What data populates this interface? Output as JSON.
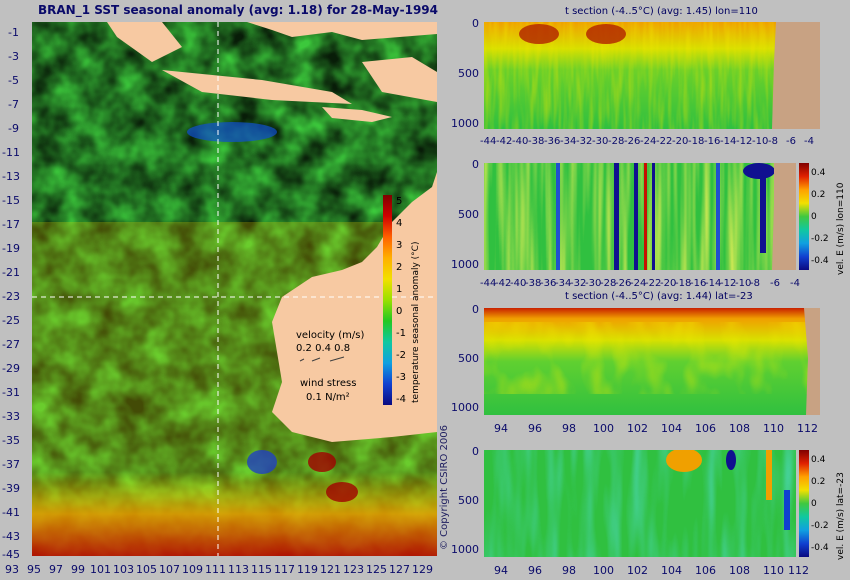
{
  "map": {
    "title": "BRAN_1 SST seasonal anomaly (avg: 1.18) for 28-May-1994",
    "lat_ticks": [
      "-1",
      "-3",
      "-5",
      "-7",
      "-9",
      "-11",
      "-13",
      "-15",
      "-17",
      "-19",
      "-21",
      "-23",
      "-25",
      "-27",
      "-29",
      "-31",
      "-33",
      "-35",
      "-37",
      "-39",
      "-41",
      "-43",
      "-45"
    ],
    "lon_ticks": [
      "93",
      "95",
      "97",
      "99",
      "101",
      "103",
      "105",
      "107",
      "109",
      "111",
      "113",
      "115",
      "117",
      "119",
      "121",
      "123",
      "125",
      "127",
      "129"
    ],
    "colorbar": {
      "label": "temperature seasonal anomaly (°C)",
      "ticks": [
        "5",
        "4",
        "3",
        "2",
        "1",
        "0",
        "-1",
        "-2",
        "-3",
        "-4"
      ]
    },
    "velocity_legend": {
      "title": "velocity (m/s)",
      "values": "0.2 0.4 0.8"
    },
    "wind_legend": {
      "title": "wind stress",
      "value": "0.1 N/m²"
    },
    "copyright": "© Copyright CSIRO 2006",
    "colors": {
      "land": "#f7c9a2",
      "sea_bg": "#39c839"
    }
  },
  "panels": [
    {
      "title": "t section (-4..5°C) (avg: 1.45) lon=110",
      "y_ticks": [
        "0",
        "500",
        "1000"
      ],
      "x_ticks": [
        "-44",
        "-42",
        "-40",
        "-38",
        "-36",
        "-34",
        "-32",
        "-30",
        "-28",
        "-26",
        "-24",
        "-22",
        "-20",
        "-18",
        "-16",
        "-14",
        "-12",
        "-10",
        "-8",
        "-6",
        "-4"
      ],
      "colorbar": null,
      "land_color": "#c8a283"
    },
    {
      "title": "",
      "y_ticks": [
        "0",
        "500",
        "1000"
      ],
      "x_ticks": [
        "-44",
        "-42",
        "-40",
        "-38",
        "-36",
        "-34",
        "-32",
        "-30",
        "-28",
        "-26",
        "-24",
        "-22",
        "-20",
        "-18",
        "-16",
        "-14",
        "-12",
        "-10",
        "-8",
        "-6",
        "-4"
      ],
      "colorbar": {
        "label": "vel. E (m/s) lon=110",
        "ticks": [
          "0.4",
          "0.2",
          "0",
          "-0.2",
          "-0.4"
        ]
      },
      "land_color": "#c8a283"
    },
    {
      "title": "t section (-4..5°C) (avg: 1.44) lat=-23",
      "y_ticks": [
        "0",
        "500",
        "1000"
      ],
      "x_ticks": [
        "94",
        "96",
        "98",
        "100",
        "102",
        "104",
        "106",
        "108",
        "110",
        "112"
      ],
      "colorbar": null,
      "land_color": "#c8a283"
    },
    {
      "title": "",
      "y_ticks": [
        "0",
        "500",
        "1000"
      ],
      "x_ticks": [
        "94",
        "96",
        "98",
        "100",
        "102",
        "104",
        "106",
        "108",
        "110",
        "112"
      ],
      "colorbar": {
        "label": "vel. E (m/s) lat=-23",
        "ticks": [
          "0.4",
          "0.2",
          "0",
          "-0.2",
          "-0.4"
        ]
      },
      "land_color": "#c8a283"
    }
  ]
}
